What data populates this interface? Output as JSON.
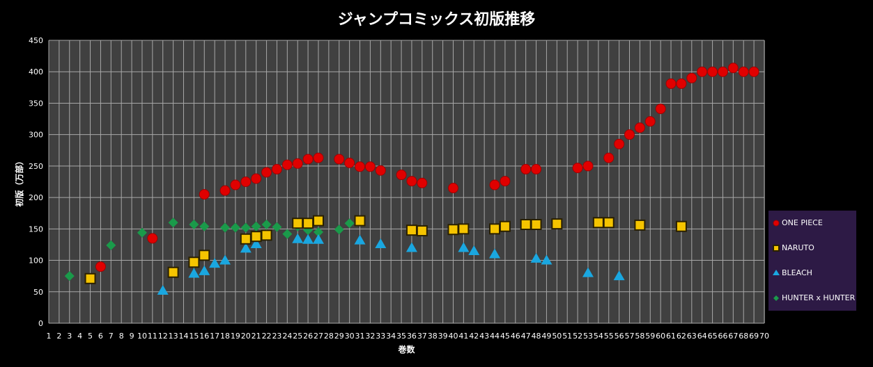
{
  "chart_data": {
    "type": "scatter",
    "title": "ジャンプコミックス初版推移",
    "xlabel": "巻数",
    "ylabel": "初版（万部）",
    "x_categories": [
      1,
      2,
      3,
      4,
      5,
      6,
      7,
      8,
      9,
      10,
      11,
      12,
      13,
      14,
      15,
      16,
      17,
      18,
      19,
      20,
      21,
      22,
      23,
      24,
      25,
      26,
      27,
      28,
      29,
      30,
      31,
      32,
      33,
      34,
      35,
      36,
      37,
      38,
      39,
      40,
      41,
      42,
      43,
      44,
      45,
      46,
      47,
      48,
      49,
      50,
      51,
      52,
      53,
      54,
      55,
      56,
      57,
      58,
      59,
      60,
      61,
      62,
      63,
      64,
      65,
      66,
      67,
      68,
      69,
      70
    ],
    "ylim": [
      0,
      450
    ],
    "yticks": [
      0,
      50,
      100,
      150,
      200,
      250,
      300,
      350,
      400,
      450
    ],
    "grid": true,
    "legend_position": "right",
    "series": [
      {
        "name": "ONE PIECE",
        "marker": "circle",
        "color": "#e00000",
        "points": [
          [
            6,
            90
          ],
          [
            11,
            135
          ],
          [
            16,
            205
          ],
          [
            18,
            211
          ],
          [
            19,
            220
          ],
          [
            20,
            225
          ],
          [
            21,
            230
          ],
          [
            22,
            240
          ],
          [
            23,
            245
          ],
          [
            24,
            252
          ],
          [
            25,
            254
          ],
          [
            26,
            261
          ],
          [
            27,
            263
          ],
          [
            29,
            261
          ],
          [
            30,
            255
          ],
          [
            31,
            249
          ],
          [
            32,
            249
          ],
          [
            33,
            243
          ],
          [
            35,
            236
          ],
          [
            36,
            226
          ],
          [
            37,
            223
          ],
          [
            40,
            215
          ],
          [
            44,
            220
          ],
          [
            45,
            226
          ],
          [
            47,
            245
          ],
          [
            48,
            245
          ],
          [
            52,
            247
          ],
          [
            53,
            250
          ],
          [
            55,
            263
          ],
          [
            56,
            285
          ],
          [
            57,
            300
          ],
          [
            58,
            311
          ],
          [
            59,
            321
          ],
          [
            60,
            341
          ],
          [
            61,
            381
          ],
          [
            62,
            381
          ],
          [
            63,
            390
          ],
          [
            64,
            400
          ],
          [
            65,
            400
          ],
          [
            66,
            400
          ],
          [
            67,
            406
          ],
          [
            68,
            400
          ],
          [
            69,
            400
          ]
        ]
      },
      {
        "name": "NARUTO",
        "marker": "square",
        "color": "#f5c400",
        "points": [
          [
            5,
            71
          ],
          [
            13,
            81
          ],
          [
            15,
            97
          ],
          [
            16,
            108
          ],
          [
            20,
            134
          ],
          [
            21,
            138
          ],
          [
            22,
            140
          ],
          [
            25,
            159
          ],
          [
            26,
            159
          ],
          [
            27,
            163
          ],
          [
            31,
            163
          ],
          [
            36,
            148
          ],
          [
            37,
            147
          ],
          [
            40,
            149
          ],
          [
            41,
            150
          ],
          [
            44,
            150
          ],
          [
            45,
            154
          ],
          [
            47,
            157
          ],
          [
            48,
            157
          ],
          [
            50,
            158
          ],
          [
            54,
            160
          ],
          [
            55,
            160
          ],
          [
            58,
            156
          ],
          [
            62,
            154
          ]
        ]
      },
      {
        "name": "BLEACH",
        "marker": "triangle",
        "color": "#1aa7e0",
        "points": [
          [
            12,
            52
          ],
          [
            15,
            79
          ],
          [
            16,
            83
          ],
          [
            17,
            95
          ],
          [
            18,
            100
          ],
          [
            20,
            119
          ],
          [
            21,
            126
          ],
          [
            25,
            134
          ],
          [
            26,
            133
          ],
          [
            27,
            133
          ],
          [
            31,
            132
          ],
          [
            33,
            126
          ],
          [
            36,
            120
          ],
          [
            41,
            120
          ],
          [
            42,
            115
          ],
          [
            44,
            110
          ],
          [
            48,
            103
          ],
          [
            49,
            100
          ],
          [
            53,
            80
          ],
          [
            56,
            75
          ]
        ]
      },
      {
        "name": "HUNTER x HUNTER",
        "marker": "diamond",
        "color": "#1a9a4a",
        "points": [
          [
            3,
            75
          ],
          [
            7,
            124
          ],
          [
            10,
            144
          ],
          [
            13,
            160
          ],
          [
            15,
            157
          ],
          [
            16,
            154
          ],
          [
            18,
            152
          ],
          [
            19,
            152
          ],
          [
            20,
            152
          ],
          [
            21,
            154
          ],
          [
            22,
            157
          ],
          [
            23,
            153
          ],
          [
            24,
            142
          ],
          [
            25,
            154
          ],
          [
            26,
            148
          ],
          [
            27,
            145
          ],
          [
            29,
            149
          ],
          [
            30,
            159
          ]
        ]
      }
    ]
  }
}
